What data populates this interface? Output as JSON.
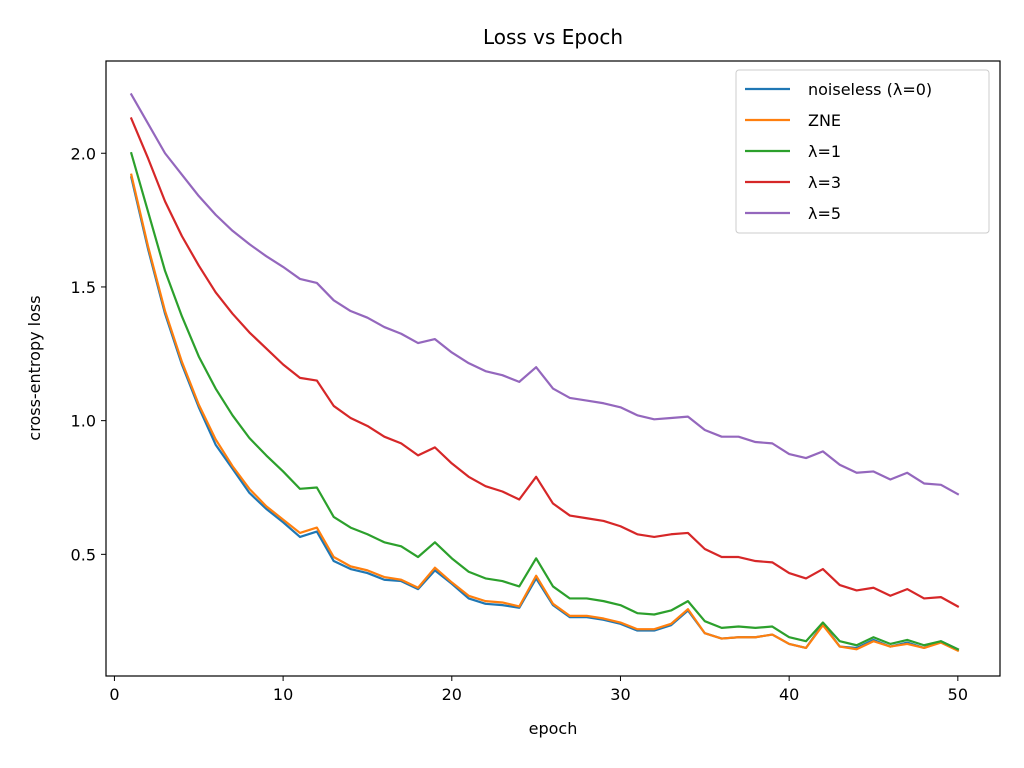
{
  "chart_data": {
    "type": "line",
    "title": "Loss vs Epoch",
    "xlabel": "epoch",
    "ylabel": "cross-entropy loss",
    "xlim": [
      -0.5,
      52.5
    ],
    "ylim": [
      0.045,
      2.345
    ],
    "xticks": [
      0,
      10,
      20,
      30,
      40,
      50
    ],
    "yticks": [
      0.5,
      1.0,
      1.5,
      2.0
    ],
    "grid": false,
    "legend_position": "top-right",
    "x": [
      1,
      2,
      3,
      4,
      5,
      6,
      7,
      8,
      9,
      10,
      11,
      12,
      13,
      14,
      15,
      16,
      17,
      18,
      19,
      20,
      21,
      22,
      23,
      24,
      25,
      26,
      27,
      28,
      29,
      30,
      31,
      32,
      33,
      34,
      35,
      36,
      37,
      38,
      39,
      40,
      41,
      42,
      43,
      44,
      45,
      46,
      47,
      48,
      49,
      50
    ],
    "series": [
      {
        "name": "noiseless (λ=0)",
        "color": "#1f77b4",
        "values": [
          1.91,
          1.64,
          1.4,
          1.21,
          1.05,
          0.91,
          0.82,
          0.73,
          0.67,
          0.62,
          0.565,
          0.585,
          0.475,
          0.445,
          0.43,
          0.405,
          0.4,
          0.37,
          0.44,
          0.39,
          0.335,
          0.315,
          0.31,
          0.3,
          0.41,
          0.31,
          0.265,
          0.265,
          0.255,
          0.24,
          0.215,
          0.215,
          0.235,
          0.29,
          0.205,
          0.185,
          0.19,
          0.19,
          0.2,
          0.165,
          0.15,
          0.24,
          0.155,
          0.15,
          0.18,
          0.155,
          0.17,
          0.15,
          0.175,
          0.145
        ]
      },
      {
        "name": "ZNE",
        "color": "#ff7f0e",
        "values": [
          1.92,
          1.65,
          1.41,
          1.22,
          1.06,
          0.93,
          0.83,
          0.745,
          0.68,
          0.63,
          0.58,
          0.6,
          0.49,
          0.455,
          0.44,
          0.415,
          0.405,
          0.375,
          0.45,
          0.395,
          0.345,
          0.325,
          0.32,
          0.305,
          0.42,
          0.315,
          0.27,
          0.27,
          0.26,
          0.245,
          0.22,
          0.22,
          0.24,
          0.295,
          0.205,
          0.185,
          0.19,
          0.19,
          0.2,
          0.165,
          0.15,
          0.235,
          0.155,
          0.145,
          0.175,
          0.155,
          0.165,
          0.15,
          0.17,
          0.14
        ]
      },
      {
        "name": "λ=1",
        "color": "#2ca02c",
        "values": [
          2.0,
          1.78,
          1.56,
          1.39,
          1.24,
          1.12,
          1.02,
          0.935,
          0.87,
          0.81,
          0.745,
          0.75,
          0.64,
          0.6,
          0.575,
          0.545,
          0.53,
          0.49,
          0.545,
          0.485,
          0.435,
          0.41,
          0.4,
          0.38,
          0.485,
          0.38,
          0.335,
          0.335,
          0.325,
          0.31,
          0.28,
          0.275,
          0.29,
          0.325,
          0.25,
          0.225,
          0.23,
          0.225,
          0.23,
          0.19,
          0.175,
          0.245,
          0.175,
          0.16,
          0.19,
          0.165,
          0.18,
          0.16,
          0.175,
          0.145
        ]
      },
      {
        "name": "λ=3",
        "color": "#d62728",
        "values": [
          2.13,
          1.98,
          1.82,
          1.69,
          1.58,
          1.48,
          1.4,
          1.33,
          1.27,
          1.21,
          1.16,
          1.15,
          1.055,
          1.01,
          0.98,
          0.94,
          0.915,
          0.87,
          0.9,
          0.84,
          0.79,
          0.755,
          0.735,
          0.705,
          0.79,
          0.69,
          0.645,
          0.635,
          0.625,
          0.605,
          0.575,
          0.565,
          0.575,
          0.58,
          0.52,
          0.49,
          0.49,
          0.475,
          0.47,
          0.43,
          0.41,
          0.445,
          0.385,
          0.365,
          0.375,
          0.345,
          0.37,
          0.335,
          0.34,
          0.305
        ]
      },
      {
        "name": "λ=5",
        "color": "#9467bd",
        "values": [
          2.22,
          2.11,
          2.0,
          1.92,
          1.84,
          1.77,
          1.71,
          1.66,
          1.615,
          1.575,
          1.53,
          1.515,
          1.45,
          1.41,
          1.385,
          1.35,
          1.325,
          1.29,
          1.305,
          1.255,
          1.215,
          1.185,
          1.17,
          1.145,
          1.2,
          1.12,
          1.085,
          1.075,
          1.065,
          1.05,
          1.02,
          1.005,
          1.01,
          1.015,
          0.965,
          0.94,
          0.94,
          0.92,
          0.915,
          0.875,
          0.86,
          0.885,
          0.835,
          0.805,
          0.81,
          0.78,
          0.805,
          0.765,
          0.76,
          0.725
        ]
      }
    ]
  }
}
